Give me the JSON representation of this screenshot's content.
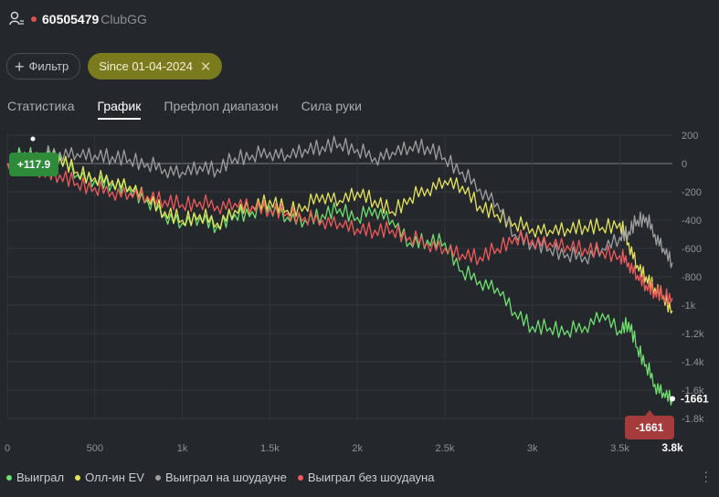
{
  "header": {
    "user_icon": "user-settings-icon",
    "player_id": "60505479",
    "club": "ClubGG",
    "status_color": "#d9534f"
  },
  "filters": {
    "filter_button_label": "Фильтр",
    "date_chip_label": "Since 01-04-2024",
    "date_chip_color": "#7a7a1e"
  },
  "tabs": [
    {
      "label": "Статистика",
      "active": false
    },
    {
      "label": "График",
      "active": true
    },
    {
      "label": "Префлоп диапазон",
      "active": false
    },
    {
      "label": "Сила руки",
      "active": false
    }
  ],
  "chart_data": {
    "type": "line",
    "x_ticks": [
      "0",
      "500",
      "1k",
      "1.5k",
      "2k",
      "2.5k",
      "3k",
      "3.5k"
    ],
    "y_ticks": [
      "200",
      "0",
      "-200",
      "-400",
      "-600",
      "-800",
      "-1k",
      "-1.2k",
      "-1.4k",
      "-1.6k",
      "-1.8k"
    ],
    "xlim": [
      0,
      3800
    ],
    "ylim": [
      -1800,
      200
    ],
    "x_end_label": "3.8k",
    "start_badge": "+117.9",
    "end_badge": "-1661",
    "end_value_label": "-1661",
    "grid": true,
    "legend_position": "bottom-left",
    "series": [
      {
        "name": "Выиграл",
        "color": "#6ee06e",
        "x": [
          0,
          100,
          200,
          300,
          400,
          500,
          600,
          700,
          800,
          900,
          1000,
          1100,
          1200,
          1300,
          1400,
          1500,
          1600,
          1700,
          1800,
          1900,
          2000,
          2100,
          2200,
          2300,
          2400,
          2500,
          2600,
          2700,
          2800,
          2900,
          3000,
          3100,
          3200,
          3300,
          3400,
          3500,
          3550,
          3600,
          3650,
          3700,
          3750,
          3800
        ],
        "values": [
          0,
          80,
          20,
          60,
          -80,
          -120,
          -140,
          -180,
          -260,
          -360,
          -420,
          -380,
          -440,
          -360,
          -340,
          -300,
          -380,
          -400,
          -360,
          -320,
          -380,
          -320,
          -400,
          -560,
          -540,
          -560,
          -760,
          -830,
          -880,
          -1050,
          -1150,
          -1160,
          -1180,
          -1150,
          -1060,
          -1180,
          -1120,
          -1300,
          -1420,
          -1560,
          -1620,
          -1661
        ]
      },
      {
        "name": "Олл-ин EV",
        "color": "#e6e35a",
        "x": [
          0,
          100,
          200,
          300,
          400,
          500,
          600,
          700,
          800,
          900,
          1000,
          1100,
          1200,
          1300,
          1400,
          1500,
          1600,
          1700,
          1800,
          1900,
          2000,
          2100,
          2200,
          2300,
          2400,
          2500,
          2600,
          2700,
          2800,
          2900,
          3000,
          3100,
          3200,
          3300,
          3400,
          3500,
          3550,
          3600,
          3650,
          3700,
          3750,
          3800
        ],
        "values": [
          0,
          60,
          20,
          40,
          -60,
          -100,
          -120,
          -160,
          -240,
          -340,
          -400,
          -360,
          -420,
          -330,
          -300,
          -260,
          -330,
          -300,
          -220,
          -260,
          -200,
          -260,
          -340,
          -240,
          -180,
          -120,
          -160,
          -300,
          -360,
          -420,
          -460,
          -470,
          -460,
          -440,
          -450,
          -420,
          -560,
          -720,
          -800,
          -880,
          -940,
          -1040
        ]
      },
      {
        "name": "Выиграл на шоудауне",
        "color": "#9e9e9e",
        "x": [
          0,
          100,
          200,
          300,
          400,
          500,
          600,
          700,
          800,
          900,
          1000,
          1100,
          1200,
          1300,
          1400,
          1500,
          1600,
          1700,
          1800,
          1900,
          2000,
          2100,
          2200,
          2300,
          2400,
          2500,
          2600,
          2700,
          2800,
          2900,
          3000,
          3100,
          3200,
          3300,
          3400,
          3500,
          3550,
          3600,
          3650,
          3700,
          3750,
          3800
        ],
        "values": [
          0,
          40,
          60,
          80,
          70,
          60,
          50,
          30,
          0,
          -40,
          -60,
          -20,
          -40,
          40,
          60,
          80,
          60,
          100,
          120,
          140,
          100,
          40,
          80,
          120,
          120,
          40,
          -60,
          -180,
          -280,
          -500,
          -560,
          -600,
          -640,
          -660,
          -600,
          -520,
          -480,
          -400,
          -380,
          -500,
          -600,
          -700
        ]
      },
      {
        "name": "Выиграл без шоудауна",
        "color": "#ef5a5a",
        "x": [
          0,
          100,
          200,
          300,
          400,
          500,
          600,
          700,
          800,
          900,
          1000,
          1100,
          1200,
          1300,
          1400,
          1500,
          1600,
          1700,
          1800,
          1900,
          2000,
          2100,
          2200,
          2300,
          2400,
          2500,
          2600,
          2700,
          2800,
          2900,
          3000,
          3100,
          3200,
          3300,
          3400,
          3500,
          3550,
          3600,
          3650,
          3700,
          3750,
          3800
        ],
        "values": [
          0,
          20,
          -60,
          -80,
          -140,
          -170,
          -200,
          -210,
          -230,
          -260,
          -290,
          -270,
          -300,
          -280,
          -300,
          -320,
          -350,
          -380,
          -400,
          -420,
          -460,
          -470,
          -470,
          -520,
          -560,
          -600,
          -640,
          -660,
          -600,
          -520,
          -540,
          -560,
          -580,
          -600,
          -620,
          -650,
          -700,
          -790,
          -860,
          -900,
          -930,
          -950
        ]
      }
    ]
  },
  "legend": [
    {
      "label": "Выиграл",
      "color": "#6ee06e"
    },
    {
      "label": "Олл-ин EV",
      "color": "#e6e35a"
    },
    {
      "label": "Выиграл на шоудауне",
      "color": "#9e9e9e"
    },
    {
      "label": "Выиграл без шоудауна",
      "color": "#ef5a5a"
    }
  ],
  "icons": {
    "more": "more-vertical-icon",
    "close": "close-icon",
    "plus": "plus-icon"
  }
}
